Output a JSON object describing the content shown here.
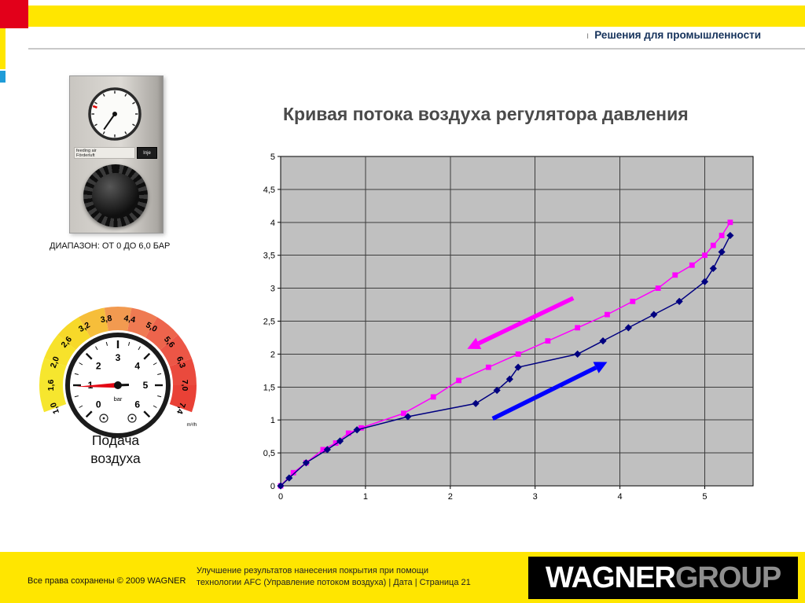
{
  "colors": {
    "brand_yellow": "#FFE600",
    "brand_red": "#E2001A",
    "accent_blue": "#1F9CD8",
    "header_text": "#15325B"
  },
  "header": {
    "divider": "ı",
    "title": "Решения для промышленности"
  },
  "left_panel": {
    "regulator": {
      "label_line1": "feeding air",
      "label_line2": "Förderluft",
      "side_label": "Inje",
      "caption": "ДИАПАЗОН: ОТ 0 ДО 6,0 БАР"
    },
    "flow_gauge": {
      "scale_labels": [
        "1,0",
        "1,6",
        "2,0",
        "2,6",
        "3,2",
        "3,8",
        "4,4",
        "5,0",
        "5,6",
        "6,3",
        "7,0",
        "7,4"
      ],
      "unit": "m³/h",
      "segment_colors": [
        "#F6E62E",
        "#F6E62E",
        "#F7E22B",
        "#F7D929",
        "#F6BE3A",
        "#F29A50",
        "#EF7A52",
        "#ED644C",
        "#EC5646",
        "#EA4A3D",
        "#E94136"
      ],
      "dial_numbers": [
        "0",
        "1",
        "2",
        "3",
        "4",
        "5",
        "6"
      ],
      "dial_unit": "bar",
      "caption_line1": "Подача",
      "caption_line2": "воздуха"
    }
  },
  "chart_data": {
    "type": "line",
    "title": "Кривая потока воздуха регулятора давления",
    "xlabel": "",
    "ylabel": "",
    "xlim": [
      0,
      5.57
    ],
    "ylim": [
      0,
      5
    ],
    "x_ticks": [
      "0",
      "1",
      "2",
      "3",
      "4",
      "5"
    ],
    "y_ticks": [
      "0",
      "0,5",
      "1",
      "1,5",
      "2",
      "2,5",
      "3",
      "3,5",
      "4",
      "4,5",
      "5"
    ],
    "plot_bg": "#C0C0C0",
    "grid_color": "#3c3c3c",
    "grid": "on",
    "legend": "none",
    "series": [
      {
        "name": "magenta-squares-curve",
        "color": "#FF00FF",
        "marker": "square",
        "points": [
          [
            0,
            0
          ],
          [
            0.15,
            0.2
          ],
          [
            0.3,
            0.35
          ],
          [
            0.5,
            0.55
          ],
          [
            0.65,
            0.65
          ],
          [
            0.8,
            0.8
          ],
          [
            0.95,
            0.88
          ],
          [
            1.45,
            1.1
          ],
          [
            1.8,
            1.35
          ],
          [
            2.1,
            1.6
          ],
          [
            2.45,
            1.8
          ],
          [
            2.8,
            2.0
          ],
          [
            3.15,
            2.2
          ],
          [
            3.5,
            2.4
          ],
          [
            3.85,
            2.6
          ],
          [
            4.15,
            2.8
          ],
          [
            4.45,
            3.0
          ],
          [
            4.65,
            3.2
          ],
          [
            4.85,
            3.35
          ],
          [
            5.0,
            3.5
          ],
          [
            5.1,
            3.65
          ],
          [
            5.2,
            3.8
          ],
          [
            5.3,
            4.0
          ]
        ]
      },
      {
        "name": "navy-diamonds-curve",
        "color": "#000080",
        "marker": "diamond",
        "points": [
          [
            0,
            0
          ],
          [
            0.1,
            0.12
          ],
          [
            0.3,
            0.35
          ],
          [
            0.55,
            0.55
          ],
          [
            0.7,
            0.68
          ],
          [
            0.9,
            0.85
          ],
          [
            1.5,
            1.05
          ],
          [
            2.3,
            1.25
          ],
          [
            2.55,
            1.45
          ],
          [
            2.7,
            1.62
          ],
          [
            2.8,
            1.8
          ],
          [
            3.5,
            2.0
          ],
          [
            3.8,
            2.2
          ],
          [
            4.1,
            2.4
          ],
          [
            4.4,
            2.6
          ],
          [
            4.7,
            2.8
          ],
          [
            5.0,
            3.1
          ],
          [
            5.1,
            3.3
          ],
          [
            5.2,
            3.55
          ],
          [
            5.3,
            3.8
          ]
        ]
      }
    ],
    "arrows": [
      {
        "color": "#FF00FF",
        "from": [
          3.45,
          2.85
        ],
        "to": [
          2.2,
          2.08
        ]
      },
      {
        "color": "#0000FF",
        "from": [
          2.5,
          1.02
        ],
        "to": [
          3.85,
          1.88
        ]
      }
    ]
  },
  "footer": {
    "copyright": "Все права сохранены © 2009 WAGNER",
    "description_line1": "Улучшение результатов нанесения покрытия при помощи",
    "description_line2": "технологии AFC (Управление потоком воздуха) | Дата | Страница 21",
    "logo_primary": "WAGNER",
    "logo_secondary": "GROUP"
  }
}
